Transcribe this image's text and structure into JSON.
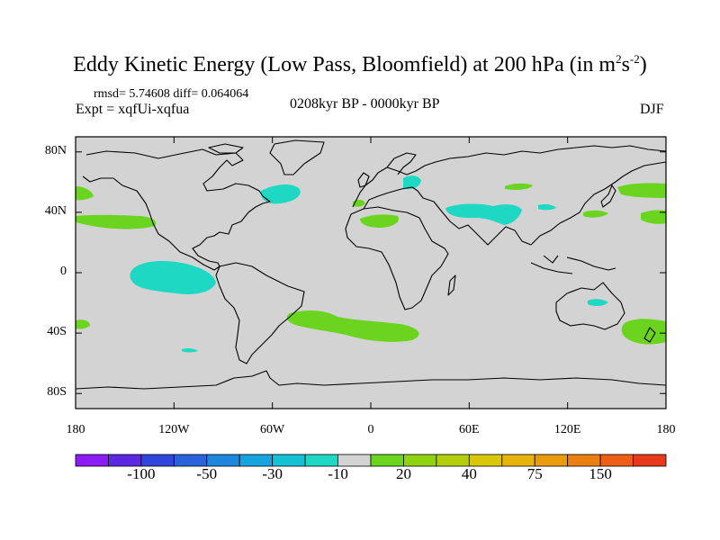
{
  "title": {
    "main": "Eddy Kinetic Energy (Low Pass, Bloomfield) at 200 hPa (in m",
    "sup1": "2",
    "mid": "s",
    "sup2": "-2",
    "end": ")"
  },
  "stats": "rmsd= 5.74608 diff= 0.064064",
  "experiment": "Expt = xqfUi-xqfua",
  "period": "0208kyr BP - 0000kyr BP",
  "season": "DJF",
  "map": {
    "projection": "cylindrical equidistant",
    "lon_range": [
      -180,
      180
    ],
    "lat_range": [
      -90,
      90
    ],
    "y_ticks": [
      {
        "lat": 80,
        "label": "80N"
      },
      {
        "lat": 40,
        "label": "40N"
      },
      {
        "lat": 0,
        "label": "0"
      },
      {
        "lat": -40,
        "label": "40S"
      },
      {
        "lat": -80,
        "label": "80S"
      }
    ],
    "x_ticks": [
      {
        "lon": -180,
        "label": "180"
      },
      {
        "lon": -120,
        "label": "120W"
      },
      {
        "lon": -60,
        "label": "60W"
      },
      {
        "lon": 0,
        "label": "0"
      },
      {
        "lon": 60,
        "label": "60E"
      },
      {
        "lon": 120,
        "label": "120E"
      },
      {
        "lon": 180,
        "label": "180"
      }
    ],
    "background_color": "#d3d3d3"
  },
  "colorbar": {
    "colors": [
      "#8c1cf5",
      "#5b2ae0",
      "#2f45dc",
      "#2a62db",
      "#1f86dd",
      "#17a4de",
      "#14c1d6",
      "#1ed8c3",
      "#d3d3d3",
      "#6ad41e",
      "#8fd210",
      "#b3cf0b",
      "#d9c70a",
      "#e8b40b",
      "#ea9a0d",
      "#ec7f12",
      "#ed5f16",
      "#e8391a"
    ],
    "labels": [
      {
        "label": "-100",
        "index": 2
      },
      {
        "label": "-50",
        "index": 4
      },
      {
        "label": "-30",
        "index": 6
      },
      {
        "label": "-10",
        "index": 8
      },
      {
        "label": "20",
        "index": 10
      },
      {
        "label": "40",
        "index": 12
      },
      {
        "label": "75",
        "index": 14
      },
      {
        "label": "150",
        "index": 16
      }
    ]
  }
}
